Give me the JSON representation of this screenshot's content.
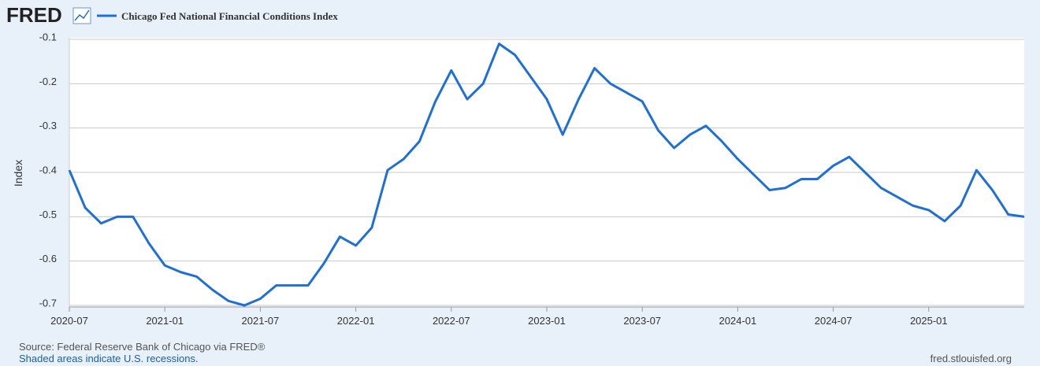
{
  "chart_data": {
    "type": "line",
    "logo": "FRED",
    "y_label": "Index",
    "source": "Source: Federal Reserve Bank of Chicago via FRED®",
    "note": "Shaded areas indicate U.S. recessions.",
    "url": "fred.stlouisfed.org",
    "x": [
      "2020-07",
      "2020-08",
      "2020-09",
      "2020-10",
      "2020-11",
      "2020-12",
      "2021-01",
      "2021-02",
      "2021-03",
      "2021-04",
      "2021-05",
      "2021-06",
      "2021-07",
      "2021-08",
      "2021-09",
      "2021-10",
      "2021-11",
      "2021-12",
      "2022-01",
      "2022-02",
      "2022-03",
      "2022-04",
      "2022-05",
      "2022-06",
      "2022-07",
      "2022-08",
      "2022-09",
      "2022-10",
      "2022-11",
      "2022-12",
      "2023-01",
      "2023-02",
      "2023-03",
      "2023-04",
      "2023-05",
      "2023-06",
      "2023-07",
      "2023-08",
      "2023-09",
      "2023-10",
      "2023-11",
      "2023-12",
      "2024-01",
      "2024-02",
      "2024-03",
      "2024-04",
      "2024-05",
      "2024-06",
      "2024-07",
      "2024-08",
      "2024-09",
      "2024-10",
      "2024-11",
      "2024-12",
      "2025-01",
      "2025-02",
      "2025-03",
      "2025-04",
      "2025-05",
      "2025-06",
      "2025-07"
    ],
    "series": [
      {
        "name": "Chicago Fed National Financial Conditions Index",
        "color": "#1f6fd8",
        "values": [
          -0.395,
          -0.48,
          -0.515,
          -0.5,
          -0.5,
          -0.56,
          -0.61,
          -0.625,
          -0.635,
          -0.665,
          -0.69,
          -0.7,
          -0.685,
          -0.655,
          -0.655,
          -0.655,
          -0.605,
          -0.545,
          -0.565,
          -0.525,
          -0.395,
          -0.37,
          -0.33,
          -0.24,
          -0.17,
          -0.235,
          -0.2,
          -0.11,
          -0.135,
          -0.185,
          -0.235,
          -0.315,
          -0.235,
          -0.165,
          -0.2,
          -0.22,
          -0.24,
          -0.305,
          -0.345,
          -0.315,
          -0.295,
          -0.33,
          -0.37,
          -0.405,
          -0.44,
          -0.435,
          -0.415,
          -0.415,
          -0.385,
          -0.365,
          -0.4,
          -0.435,
          -0.455,
          -0.475,
          -0.485,
          -0.51,
          -0.475,
          -0.395,
          -0.44,
          -0.495,
          -0.5
        ]
      }
    ],
    "xlim": [
      "2020-07",
      "2025-07"
    ],
    "xticks": [
      "2020-07",
      "2021-01",
      "2021-07",
      "2022-01",
      "2022-07",
      "2023-01",
      "2023-07",
      "2024-01",
      "2024-07",
      "2025-01"
    ],
    "ylim": [
      -0.7,
      -0.1
    ],
    "yticks": [
      -0.7,
      -0.6,
      -0.5,
      -0.4,
      -0.3,
      -0.2,
      -0.1
    ],
    "grid": true
  }
}
